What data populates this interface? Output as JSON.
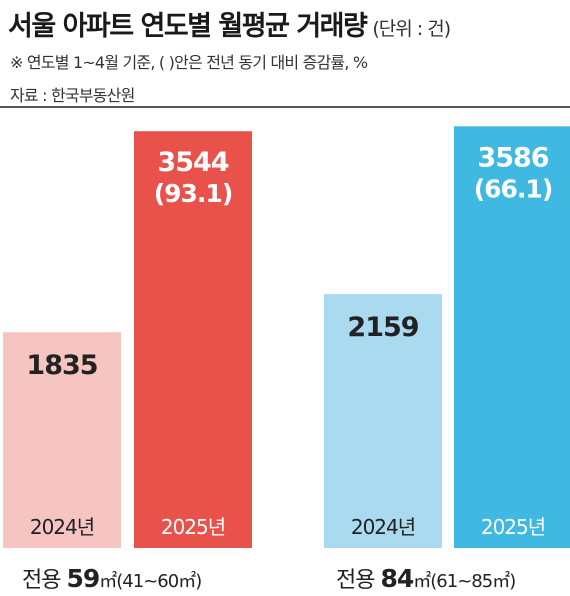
{
  "header": {
    "title": "서울 아파트 연도별 월평균 거래량",
    "unit": "(단위 : 건)",
    "note": "※ 연도별 1~4월 기준, ( )안은 전년 동기 대비 증감률, %",
    "source": "자료 : 한국부동산원"
  },
  "chart_data": {
    "type": "bar",
    "title": "서울 아파트 연도별 월평균 거래량",
    "unit": "건",
    "categories": [
      "2024년",
      "2025년"
    ],
    "groups": [
      {
        "label_prefix": "전용",
        "label_size": "59",
        "label_suffix": "㎡(41~60㎡)",
        "bars": [
          {
            "year": "2024년",
            "value": 1835,
            "value_label": "1835",
            "change_label": "",
            "color": "#f6c4c1",
            "text_color": "#222222"
          },
          {
            "year": "2025년",
            "value": 3544,
            "value_label": "3544",
            "change_label": "(93.1)",
            "color": "#e9524a",
            "text_color": "#ffffff"
          }
        ]
      },
      {
        "label_prefix": "전용",
        "label_size": "84",
        "label_suffix": "㎡(61~85㎡)",
        "bars": [
          {
            "year": "2024년",
            "value": 2159,
            "value_label": "2159",
            "change_label": "",
            "color": "#a9daf0",
            "text_color": "#222222"
          },
          {
            "year": "2025년",
            "value": 3586,
            "value_label": "3586",
            "change_label": "(66.1)",
            "color": "#3fb8e2",
            "text_color": "#ffffff"
          }
        ]
      }
    ]
  }
}
